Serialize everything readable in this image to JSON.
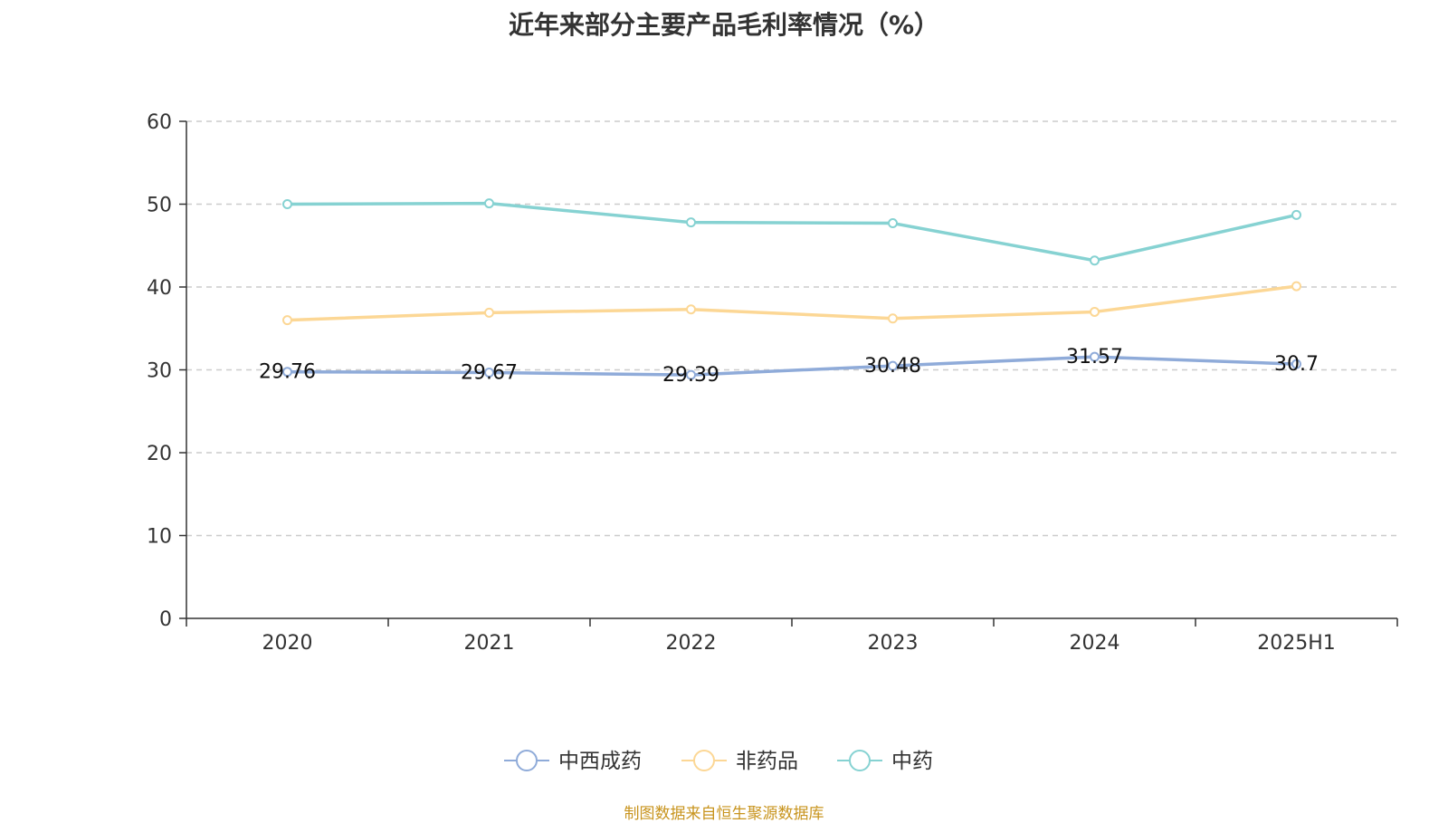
{
  "chart_data": {
    "type": "line",
    "title": "近年来部分主要产品毛利率情况（%）",
    "categories": [
      "2020",
      "2021",
      "2022",
      "2023",
      "2024",
      "2025H1"
    ],
    "ylim": [
      0,
      60
    ],
    "yticks": [
      "0",
      "10",
      "20",
      "30",
      "40",
      "50",
      "60"
    ],
    "grid": true,
    "legend_position": "bottom",
    "series": [
      {
        "name": "中西成药",
        "color": "#8fabd9",
        "values": [
          29.76,
          29.67,
          29.39,
          30.48,
          31.57,
          30.7
        ],
        "labels": [
          "29.76",
          "29.67",
          "29.39",
          "30.48",
          "31.57",
          "30.7"
        ],
        "show_labels": true
      },
      {
        "name": "非药品",
        "color": "#fcd795",
        "values": [
          36.0,
          36.9,
          37.3,
          36.2,
          37.0,
          40.1
        ],
        "show_labels": false
      },
      {
        "name": "中药",
        "color": "#86d2d2",
        "values": [
          50.0,
          50.1,
          47.8,
          47.7,
          43.2,
          48.7
        ],
        "show_labels": false
      }
    ]
  },
  "source": "制图数据来自恒生聚源数据库"
}
